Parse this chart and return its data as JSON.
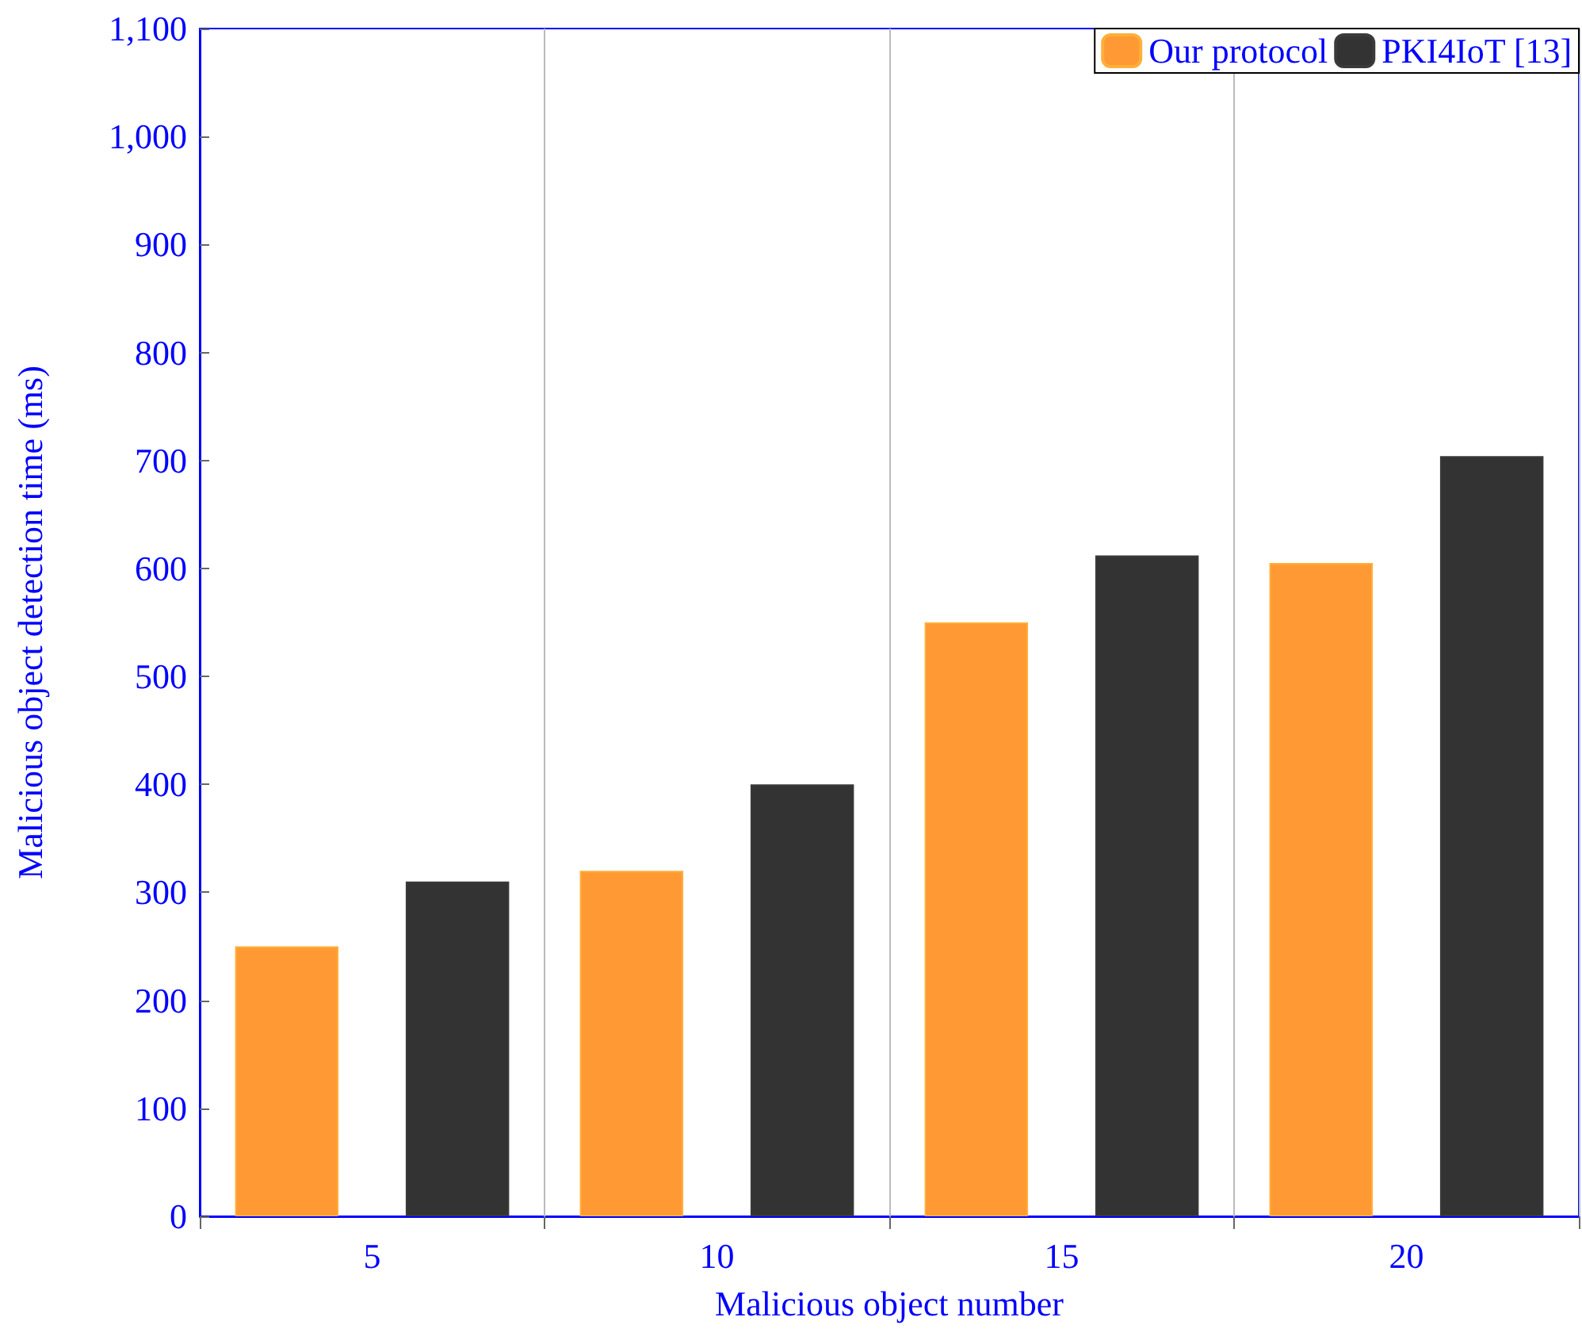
{
  "chart_data": {
    "type": "bar",
    "xlabel": "Malicious object number",
    "ylabel": "Malicious object detection time (ms)",
    "categories": [
      "5",
      "10",
      "15",
      "20"
    ],
    "series": [
      {
        "name": "Our protocol",
        "color": "#ff9933",
        "values": [
          250,
          320,
          550,
          605
        ]
      },
      {
        "name": "PKI4IoT [13]",
        "color": "#333333",
        "values": [
          310,
          400,
          612,
          704
        ]
      }
    ],
    "ylim": [
      0,
      1100
    ],
    "yticks": [
      0,
      100,
      200,
      300,
      400,
      500,
      600,
      700,
      800,
      900,
      {
        "value": 1000,
        "label": "1,000"
      },
      {
        "value": 1100,
        "label": "1,100"
      }
    ],
    "grid": "x",
    "legend": "top right"
  }
}
